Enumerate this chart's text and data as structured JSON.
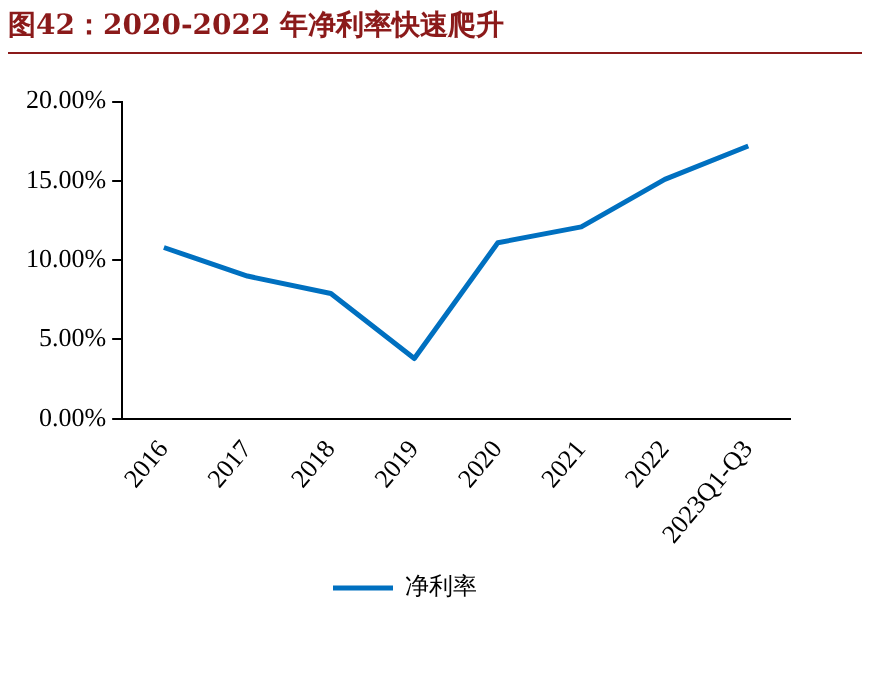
{
  "chart_data": {
    "type": "line",
    "title": "图42：2020-2022 年净利率快速爬升",
    "categories": [
      "2016",
      "2017",
      "2018",
      "2019",
      "2020",
      "2021",
      "2022",
      "2023Q1-Q3"
    ],
    "series": [
      {
        "name": "净利率",
        "color": "#0070c0",
        "values": [
          10.8,
          9.0,
          7.9,
          3.8,
          11.1,
          12.1,
          15.1,
          17.2
        ]
      }
    ],
    "ylim": [
      0,
      20
    ],
    "yticks": [
      {
        "value": 0,
        "label": "0.00%"
      },
      {
        "value": 5,
        "label": "5.00%"
      },
      {
        "value": 10,
        "label": "10.00%"
      },
      {
        "value": 15,
        "label": "15.00%"
      },
      {
        "value": 20,
        "label": "20.00%"
      }
    ],
    "grid": false,
    "legend": "bottom",
    "marker": "none",
    "line_style": "solid"
  }
}
